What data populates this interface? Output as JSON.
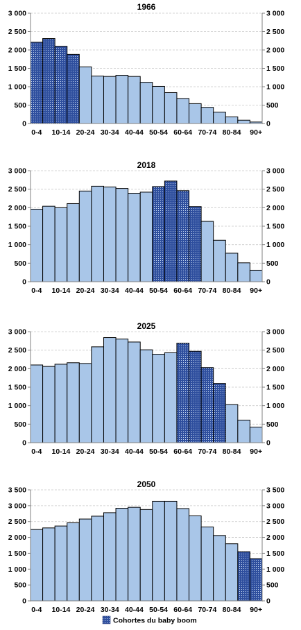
{
  "colors": {
    "plain_bar": "#a9c6e8",
    "dotted_bar": "#2f4f9e",
    "dot": "#c4d6f0",
    "grid": "#c8c8c8",
    "axis": "#808080",
    "text": "#000000"
  },
  "legend": {
    "label": "Cohortes du baby boom",
    "swatch": "dotted"
  },
  "chart_data": [
    {
      "type": "bar",
      "title": "1966",
      "categories": [
        "0-4",
        "5-9",
        "10-14",
        "15-19",
        "20-24",
        "25-29",
        "30-34",
        "35-39",
        "40-44",
        "45-49",
        "50-54",
        "55-59",
        "60-64",
        "65-69",
        "70-74",
        "75-79",
        "80-84",
        "85-89",
        "90+"
      ],
      "tick_labels": [
        "0-4",
        "10-14",
        "20-24",
        "30-34",
        "40-44",
        "50-54",
        "60-64",
        "70-74",
        "80-84",
        "90+"
      ],
      "values": [
        2210,
        2310,
        2100,
        1880,
        1540,
        1290,
        1280,
        1310,
        1280,
        1120,
        1010,
        840,
        680,
        540,
        440,
        310,
        180,
        90,
        40
      ],
      "baby_boom": [
        true,
        true,
        true,
        true,
        false,
        false,
        false,
        false,
        false,
        false,
        false,
        false,
        false,
        false,
        false,
        false,
        false,
        false,
        false
      ],
      "ylim": [
        0,
        3000
      ],
      "yticks": [
        0,
        500,
        1000,
        1500,
        2000,
        2500,
        3000
      ],
      "ytick_labels": [
        "0",
        "500",
        "1 000",
        "1 500",
        "2 000",
        "2 500",
        "3 000"
      ],
      "grid": true,
      "xlabel": "",
      "ylabel": ""
    },
    {
      "type": "bar",
      "title": "2018",
      "categories": [
        "0-4",
        "5-9",
        "10-14",
        "15-19",
        "20-24",
        "25-29",
        "30-34",
        "35-39",
        "40-44",
        "45-49",
        "50-54",
        "55-59",
        "60-64",
        "65-69",
        "70-74",
        "75-79",
        "80-84",
        "85-89",
        "90+"
      ],
      "tick_labels": [
        "0-4",
        "10-14",
        "20-24",
        "30-34",
        "40-44",
        "50-54",
        "60-64",
        "70-74",
        "80-84",
        "90+"
      ],
      "values": [
        1960,
        2040,
        2000,
        2110,
        2450,
        2580,
        2560,
        2520,
        2390,
        2420,
        2570,
        2720,
        2460,
        2030,
        1630,
        1120,
        770,
        510,
        310
      ],
      "baby_boom": [
        false,
        false,
        false,
        false,
        false,
        false,
        false,
        false,
        false,
        false,
        true,
        true,
        true,
        true,
        false,
        false,
        false,
        false,
        false
      ],
      "ylim": [
        0,
        3000
      ],
      "yticks": [
        0,
        500,
        1000,
        1500,
        2000,
        2500,
        3000
      ],
      "ytick_labels": [
        "0",
        "500",
        "1 000",
        "1 500",
        "2 000",
        "2 500",
        "3 000"
      ],
      "grid": true,
      "xlabel": "",
      "ylabel": ""
    },
    {
      "type": "bar",
      "title": "2025",
      "categories": [
        "0-4",
        "5-9",
        "10-14",
        "15-19",
        "20-24",
        "25-29",
        "30-34",
        "35-39",
        "40-44",
        "45-49",
        "50-54",
        "55-59",
        "60-64",
        "65-69",
        "70-74",
        "75-79",
        "80-84",
        "85-89",
        "90+"
      ],
      "tick_labels": [
        "0-4",
        "10-14",
        "20-24",
        "30-34",
        "40-44",
        "50-54",
        "60-64",
        "70-74",
        "80-84",
        "90+"
      ],
      "values": [
        2100,
        2060,
        2120,
        2160,
        2140,
        2590,
        2840,
        2800,
        2720,
        2510,
        2390,
        2430,
        2690,
        2470,
        2030,
        1600,
        1030,
        610,
        420
      ],
      "baby_boom": [
        false,
        false,
        false,
        false,
        false,
        false,
        false,
        false,
        false,
        false,
        false,
        false,
        true,
        true,
        true,
        true,
        false,
        false,
        false
      ],
      "ylim": [
        0,
        3000
      ],
      "yticks": [
        0,
        500,
        1000,
        1500,
        2000,
        2500,
        3000
      ],
      "ytick_labels": [
        "0",
        "500",
        "1 000",
        "1 500",
        "2 000",
        "2 500",
        "3 000"
      ],
      "grid": true,
      "xlabel": "",
      "ylabel": ""
    },
    {
      "type": "bar",
      "title": "2050",
      "categories": [
        "0-4",
        "5-9",
        "10-14",
        "15-19",
        "20-24",
        "25-29",
        "30-34",
        "35-39",
        "40-44",
        "45-49",
        "50-54",
        "55-59",
        "60-64",
        "65-69",
        "70-74",
        "75-79",
        "80-84",
        "85-89",
        "90+"
      ],
      "tick_labels": [
        "0-4",
        "10-14",
        "20-24",
        "30-34",
        "40-44",
        "50-54",
        "60-64",
        "70-74",
        "80-84",
        "90+"
      ],
      "values": [
        2250,
        2300,
        2360,
        2460,
        2580,
        2670,
        2780,
        2920,
        2950,
        2880,
        3140,
        3140,
        2910,
        2680,
        2330,
        2060,
        1800,
        1550,
        1330
      ],
      "baby_boom": [
        false,
        false,
        false,
        false,
        false,
        false,
        false,
        false,
        false,
        false,
        false,
        false,
        false,
        false,
        false,
        false,
        false,
        true,
        true
      ],
      "ylim": [
        0,
        3500
      ],
      "yticks": [
        0,
        500,
        1000,
        1500,
        2000,
        2500,
        3000,
        3500
      ],
      "ytick_labels": [
        "0",
        "500",
        "1 000",
        "1 500",
        "2 000",
        "2 500",
        "3 000",
        "3 500"
      ],
      "grid": true,
      "xlabel": "",
      "ylabel": ""
    }
  ]
}
